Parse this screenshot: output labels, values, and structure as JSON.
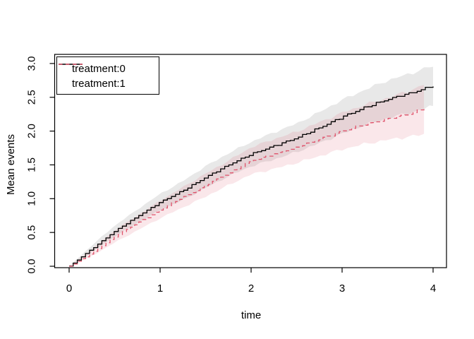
{
  "chart_data": {
    "type": "line",
    "title": "",
    "xlabel": "time",
    "ylabel": "Mean events",
    "xlim": [
      0,
      4
    ],
    "ylim": [
      0,
      3
    ],
    "x_ticks": [
      0,
      1,
      2,
      3,
      4
    ],
    "x_tick_labels": [
      "0",
      "1",
      "2",
      "3",
      "4"
    ],
    "y_ticks": [
      0,
      0.5,
      1,
      1.5,
      2,
      2.5,
      3
    ],
    "y_tick_labels": [
      "0.0",
      "0.5",
      "1.0",
      "1.5",
      "2.0",
      "2.5",
      "3.0"
    ],
    "grid": false,
    "legend_position": "top-left",
    "series": [
      {
        "name": "treatment:0",
        "color": "#000000",
        "dash": "none",
        "band_color": "rgba(0,0,0,0.09)",
        "x": [
          0,
          0.25,
          0.5,
          0.75,
          1.0,
          1.25,
          1.5,
          1.75,
          2.0,
          2.25,
          2.5,
          2.75,
          3.0,
          3.25,
          3.5,
          3.75,
          4.0
        ],
        "y": [
          0,
          0.26,
          0.52,
          0.74,
          0.95,
          1.12,
          1.32,
          1.5,
          1.66,
          1.78,
          1.9,
          2.05,
          2.21,
          2.35,
          2.47,
          2.56,
          2.67
        ],
        "lower": [
          0,
          0.21,
          0.44,
          0.64,
          0.83,
          0.98,
          1.16,
          1.33,
          1.48,
          1.58,
          1.69,
          1.82,
          1.96,
          2.09,
          2.19,
          2.27,
          2.37
        ],
        "upper": [
          0,
          0.31,
          0.6,
          0.84,
          1.07,
          1.26,
          1.48,
          1.67,
          1.84,
          1.98,
          2.11,
          2.28,
          2.46,
          2.61,
          2.75,
          2.85,
          2.97
        ]
      },
      {
        "name": "treatment:1",
        "color": "#DF536B",
        "dash": "5.5 4.5",
        "band_color": "rgba(223,83,107,0.14)",
        "x": [
          0,
          0.25,
          0.5,
          0.75,
          1.0,
          1.25,
          1.5,
          1.75,
          2.0,
          2.25,
          2.5,
          2.75,
          3.0,
          3.25,
          3.5,
          3.75,
          3.9
        ],
        "y": [
          0,
          0.2,
          0.44,
          0.64,
          0.84,
          1.02,
          1.2,
          1.38,
          1.56,
          1.66,
          1.76,
          1.88,
          2.0,
          2.1,
          2.18,
          2.26,
          2.33
        ],
        "lower": [
          0,
          0.15,
          0.35,
          0.53,
          0.71,
          0.87,
          1.03,
          1.2,
          1.36,
          1.44,
          1.53,
          1.63,
          1.73,
          1.81,
          1.87,
          1.92,
          1.95
        ],
        "upper": [
          0,
          0.25,
          0.53,
          0.75,
          0.97,
          1.17,
          1.37,
          1.56,
          1.76,
          1.88,
          1.99,
          2.13,
          2.27,
          2.39,
          2.49,
          2.6,
          2.69
        ]
      }
    ]
  }
}
